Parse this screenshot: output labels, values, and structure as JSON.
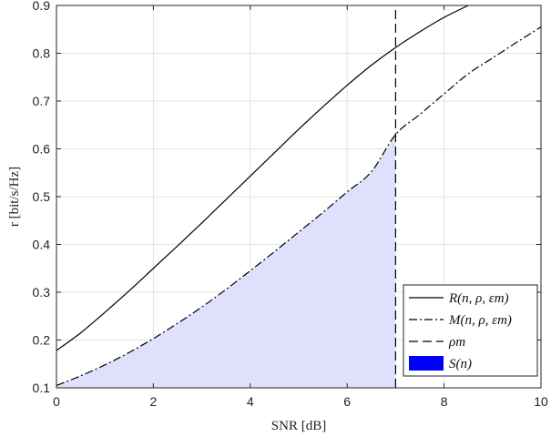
{
  "chart_data": {
    "type": "line",
    "title": "",
    "xlabel": "SNR [dB]",
    "ylabel": "r  [bit/s/Hz]",
    "xlim": [
      0,
      10
    ],
    "ylim": [
      0.1,
      0.9
    ],
    "xticks": [
      0,
      2,
      4,
      6,
      8,
      10
    ],
    "yticks": [
      0.1,
      0.2,
      0.3,
      0.4,
      0.5,
      0.6,
      0.7,
      0.8,
      0.9
    ],
    "grid": true,
    "legend_position": "bottom-right",
    "series": [
      {
        "name": "R(n, ρ, εm)",
        "style": "solid",
        "color": "#000000",
        "x": [
          0,
          0.5,
          1,
          1.5,
          2,
          2.5,
          3,
          3.5,
          4,
          4.5,
          5,
          5.5,
          6,
          6.5,
          7,
          7.5,
          8,
          8.5
        ],
        "y": [
          0.178,
          0.215,
          0.258,
          0.303,
          0.35,
          0.397,
          0.445,
          0.494,
          0.543,
          0.592,
          0.641,
          0.688,
          0.733,
          0.775,
          0.812,
          0.845,
          0.875,
          0.9
        ]
      },
      {
        "name": "M(n, ρ, εm)",
        "style": "dashdot",
        "color": "#000000",
        "x": [
          0,
          0.5,
          1,
          1.5,
          2,
          2.5,
          3,
          3.5,
          4,
          4.5,
          5,
          5.5,
          6,
          6.5,
          7,
          7.5,
          8,
          8.5,
          9,
          9.5,
          10
        ],
        "y": [
          0.105,
          0.125,
          0.148,
          0.174,
          0.203,
          0.235,
          0.269,
          0.306,
          0.345,
          0.385,
          0.426,
          0.467,
          0.51,
          0.552,
          0.63,
          0.672,
          0.715,
          0.757,
          0.79,
          0.823,
          0.855
        ]
      },
      {
        "name": "ρm",
        "style": "dashed",
        "color": "#000000",
        "x": [
          7,
          7
        ],
        "y": [
          0.1,
          0.9
        ]
      },
      {
        "name": "S(n)",
        "style": "fill",
        "color": "#0000ff",
        "fill_color": "#dfe0fb",
        "under_series": "M(n, ρ, εm)",
        "x_range": [
          0,
          7
        ]
      }
    ]
  }
}
